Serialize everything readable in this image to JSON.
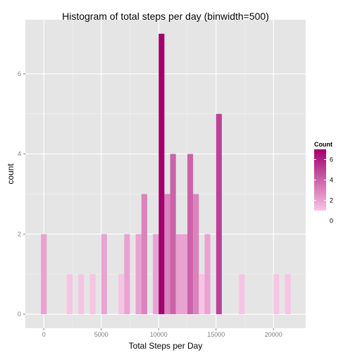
{
  "chart_data": {
    "type": "bar",
    "title": "Histogram of total steps per day (binwidth=500)",
    "xlabel": "Total Steps per Day",
    "ylabel": "count",
    "binwidth": 500,
    "xlim": [
      -1611,
      22806
    ],
    "ylim": [
      -0.35,
      7.35
    ],
    "x_ticks": [
      0,
      5000,
      10000,
      15000,
      20000
    ],
    "x_tick_labels": [
      "0",
      "5000",
      "10000",
      "15000",
      "20000"
    ],
    "y_ticks": [
      0,
      2,
      4,
      6
    ],
    "y_tick_labels": [
      "0",
      "2",
      "4",
      "6"
    ],
    "grid": true,
    "legend_position": "right",
    "legend": {
      "title": "Count",
      "ticks": [
        0,
        2,
        4,
        6
      ],
      "tick_labels": [
        "0",
        "2",
        "4",
        "6"
      ],
      "low_color": "#f7c4e3",
      "high_color": "#a0006e"
    },
    "panel_color": "#e5e5e5",
    "grid_color": "#ffffff",
    "bins": [
      {
        "x": 0,
        "count": 2
      },
      {
        "x": 2250,
        "count": 1
      },
      {
        "x": 3250,
        "count": 1
      },
      {
        "x": 4250,
        "count": 1
      },
      {
        "x": 5250,
        "count": 2
      },
      {
        "x": 6750,
        "count": 1
      },
      {
        "x": 7250,
        "count": 2
      },
      {
        "x": 8250,
        "count": 2
      },
      {
        "x": 8750,
        "count": 3
      },
      {
        "x": 9750,
        "count": 2
      },
      {
        "x": 10250,
        "count": 7
      },
      {
        "x": 10750,
        "count": 3
      },
      {
        "x": 11250,
        "count": 4
      },
      {
        "x": 11750,
        "count": 2
      },
      {
        "x": 12250,
        "count": 2
      },
      {
        "x": 12750,
        "count": 4
      },
      {
        "x": 13250,
        "count": 3
      },
      {
        "x": 13750,
        "count": 1
      },
      {
        "x": 14250,
        "count": 2
      },
      {
        "x": 15250,
        "count": 5
      },
      {
        "x": 17250,
        "count": 1
      },
      {
        "x": 20250,
        "count": 1
      },
      {
        "x": 21250,
        "count": 1
      }
    ]
  }
}
